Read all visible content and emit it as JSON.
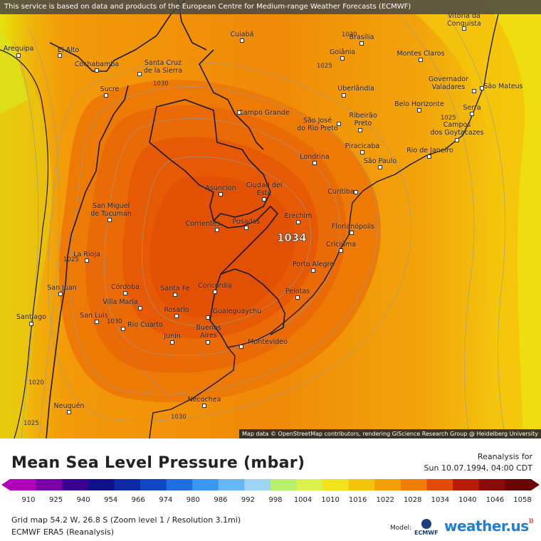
{
  "map": {
    "attribution_top": "This service is based on data and products of the European Centre for Medium-range Weather Forecasts (ECMWF)",
    "attribution_bottom": "Map data © OpenStreetMap contributors, rendering GIScience Research Group @ Heidelberg University",
    "high_label": "1034",
    "cities": [
      {
        "name": "Vitoria da\nConquista"
      },
      {
        "name": "Cuiabá"
      },
      {
        "name": "Brasília"
      },
      {
        "name": "Arequipa"
      },
      {
        "name": "El Alto"
      },
      {
        "name": "Goiânia"
      },
      {
        "name": "Montes Claros"
      },
      {
        "name": "Cochabamba"
      },
      {
        "name": "Santa Cruz\nde la Sierra"
      },
      {
        "name": "Governador\nValadares"
      },
      {
        "name": "Sucre"
      },
      {
        "name": "Uberlândia"
      },
      {
        "name": "São Mateus"
      },
      {
        "name": "Belo Horizonte"
      },
      {
        "name": "Serra"
      },
      {
        "name": "Campo Grande"
      },
      {
        "name": "Ribeirão\nPreto"
      },
      {
        "name": "São José\ndo Rio Preto"
      },
      {
        "name": "Campos\ndos Goytacazes"
      },
      {
        "name": "Piracicaba"
      },
      {
        "name": "Rio de Janeiro"
      },
      {
        "name": "Londrina"
      },
      {
        "name": "São Paulo"
      },
      {
        "name": "Asuncion"
      },
      {
        "name": "Ciudad del\nEste"
      },
      {
        "name": "Curitiba"
      },
      {
        "name": "San Miguel\nde Tucumán"
      },
      {
        "name": "Erechim"
      },
      {
        "name": "Corrientes"
      },
      {
        "name": "Posadas"
      },
      {
        "name": "Florianópolis"
      },
      {
        "name": "Criciúma"
      },
      {
        "name": "La Rioja"
      },
      {
        "name": "Porto Alegre"
      },
      {
        "name": "Córdoba"
      },
      {
        "name": "Concordia"
      },
      {
        "name": "San Juan"
      },
      {
        "name": "Santa Fe"
      },
      {
        "name": "Pelotas"
      },
      {
        "name": "Villa María"
      },
      {
        "name": "Rosario"
      },
      {
        "name": "Santiago"
      },
      {
        "name": "Gualeguaychu"
      },
      {
        "name": "San Luis"
      },
      {
        "name": "Rio Cuarto"
      },
      {
        "name": "Buenos\nAires"
      },
      {
        "name": "Junín"
      },
      {
        "name": "Montevideo"
      },
      {
        "name": "Necochea"
      },
      {
        "name": "Neuquén"
      }
    ],
    "isobar_labels": [
      "1030",
      "1025",
      "1030",
      "1025",
      "1025",
      "1030",
      "1020",
      "1025",
      "1030"
    ]
  },
  "legend": {
    "title": "Mean Sea Level Pressure (mbar)",
    "run_label": "Reanalysis for",
    "run_time": "Sun 10.07.1994, 04:00 CDT",
    "ticks": [
      "910",
      "925",
      "940",
      "954",
      "966",
      "974",
      "980",
      "986",
      "992",
      "998",
      "1004",
      "1010",
      "1016",
      "1022",
      "1028",
      "1034",
      "1040",
      "1046",
      "1058"
    ],
    "scale_colors": [
      "#b000b8",
      "#7a00a8",
      "#3a0090",
      "#10108a",
      "#0d2aa5",
      "#0f48c4",
      "#1f6fe0",
      "#3a97f0",
      "#66b8f5",
      "#9ed4f6",
      "#b7f06e",
      "#dcf04a",
      "#f2e21c",
      "#f5c30c",
      "#f3a008",
      "#ef7d06",
      "#e24a05",
      "#b81c05",
      "#8a0c08",
      "#6a0606"
    ],
    "grid_info": "Grid map 54.2 W, 26.8 S (Zoom level 1 / Resolution 3.1mi)",
    "model_info": "ECMWF ERA5 (Reanalysis)",
    "model_label": "Model:",
    "ecmwf_logo": "ECMWF",
    "brand": "weather.us"
  }
}
